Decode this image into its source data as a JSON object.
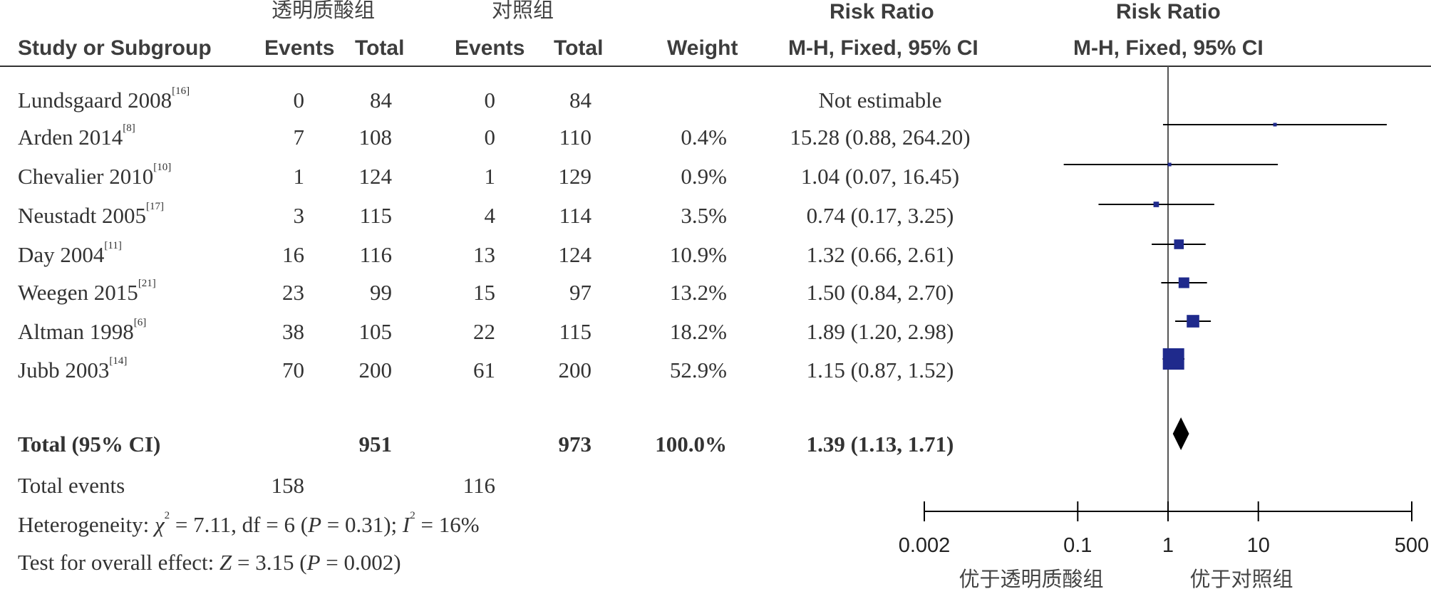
{
  "header": {
    "group1": "透明质酸组",
    "group2": "对照组",
    "rr_title_table": "Risk Ratio",
    "rr_title_plot": "Risk Ratio",
    "study_col": "Study or Subgroup",
    "events1": "Events",
    "total1": "Total",
    "events2": "Events",
    "total2": "Total",
    "weight": "Weight",
    "method_table": "M-H, Fixed, 95% CI",
    "method_plot": "M-H, Fixed, 95% CI"
  },
  "studies": [
    {
      "name": "Lundsgaard 2008",
      "ref": "[16]",
      "e1": "0",
      "t1": "84",
      "e2": "0",
      "t2": "84",
      "weight": "",
      "ci": "Not estimable"
    },
    {
      "name": "Arden 2014",
      "ref": "[8]",
      "e1": "7",
      "t1": "108",
      "e2": "0",
      "t2": "110",
      "weight": "0.4%",
      "ci": "15.28 (0.88, 264.20)"
    },
    {
      "name": "Chevalier 2010",
      "ref": "[10]",
      "e1": "1",
      "t1": "124",
      "e2": "1",
      "t2": "129",
      "weight": "0.9%",
      "ci": "1.04 (0.07, 16.45)"
    },
    {
      "name": "Neustadt 2005",
      "ref": "[17]",
      "e1": "3",
      "t1": "115",
      "e2": "4",
      "t2": "114",
      "weight": "3.5%",
      "ci": "0.74 (0.17, 3.25)"
    },
    {
      "name": "Day 2004",
      "ref": "[11]",
      "e1": "16",
      "t1": "116",
      "e2": "13",
      "t2": "124",
      "weight": "10.9%",
      "ci": "1.32 (0.66, 2.61)"
    },
    {
      "name": "Weegen 2015",
      "ref": "[21]",
      "e1": "23",
      "t1": "99",
      "e2": "15",
      "t2": "97",
      "weight": "13.2%",
      "ci": "1.50 (0.84, 2.70)"
    },
    {
      "name": "Altman 1998",
      "ref": "[6]",
      "e1": "38",
      "t1": "105",
      "e2": "22",
      "t2": "115",
      "weight": "18.2%",
      "ci": "1.89 (1.20, 2.98)"
    },
    {
      "name": "Jubb 2003",
      "ref": "[14]",
      "e1": "70",
      "t1": "200",
      "e2": "61",
      "t2": "200",
      "weight": "52.9%",
      "ci": "1.15 (0.87, 1.52)"
    }
  ],
  "total": {
    "label": "Total (95% CI)",
    "t1": "951",
    "t2": "973",
    "weight": "100.0%",
    "ci": "1.39 (1.13, 1.71)"
  },
  "total_events": {
    "label": "Total events",
    "e1": "158",
    "e2": "116"
  },
  "heterogeneity": {
    "prefix": "Heterogeneity: ",
    "chi": "χ",
    "chi_sup": "2",
    "chi_val": " = 7.11, df = 6 (",
    "p": "P",
    "p_val": " = 0.31); ",
    "i": "I",
    "i_sup": "2",
    "i_val": " = 16%"
  },
  "overall": {
    "prefix": "Test for overall effect: ",
    "z": "Z",
    "z_val": " = 3.15 (",
    "p": "P",
    "p_val": " = 0.002)"
  },
  "favours": {
    "left": "优于透明质酸组",
    "right": "优于对照组"
  },
  "chart_data": {
    "type": "forest",
    "scale": "log",
    "xlim": [
      0.002,
      500
    ],
    "x_ticks": [
      "0.002",
      "0.1",
      "1",
      "10",
      "500"
    ],
    "x_tick_values": [
      0.002,
      0.1,
      1,
      10,
      500
    ],
    "null_value": 1,
    "series": [
      {
        "label": "Lundsgaard 2008",
        "rr": null,
        "lo": null,
        "hi": null,
        "weight": 0
      },
      {
        "label": "Arden 2014",
        "rr": 15.28,
        "lo": 0.88,
        "hi": 264.2,
        "weight": 0.4
      },
      {
        "label": "Chevalier 2010",
        "rr": 1.04,
        "lo": 0.07,
        "hi": 16.45,
        "weight": 0.9
      },
      {
        "label": "Neustadt 2005",
        "rr": 0.74,
        "lo": 0.17,
        "hi": 3.25,
        "weight": 3.5
      },
      {
        "label": "Day 2004",
        "rr": 1.32,
        "lo": 0.66,
        "hi": 2.61,
        "weight": 10.9
      },
      {
        "label": "Weegen 2015",
        "rr": 1.5,
        "lo": 0.84,
        "hi": 2.7,
        "weight": 13.2
      },
      {
        "label": "Altman 1998",
        "rr": 1.89,
        "lo": 1.2,
        "hi": 2.98,
        "weight": 18.2
      },
      {
        "label": "Jubb 2003",
        "rr": 1.15,
        "lo": 0.87,
        "hi": 1.52,
        "weight": 52.9
      }
    ],
    "pooled": {
      "rr": 1.39,
      "lo": 1.13,
      "hi": 1.71
    },
    "marker_color": "#1f2a8c",
    "line_color": "#000000"
  }
}
